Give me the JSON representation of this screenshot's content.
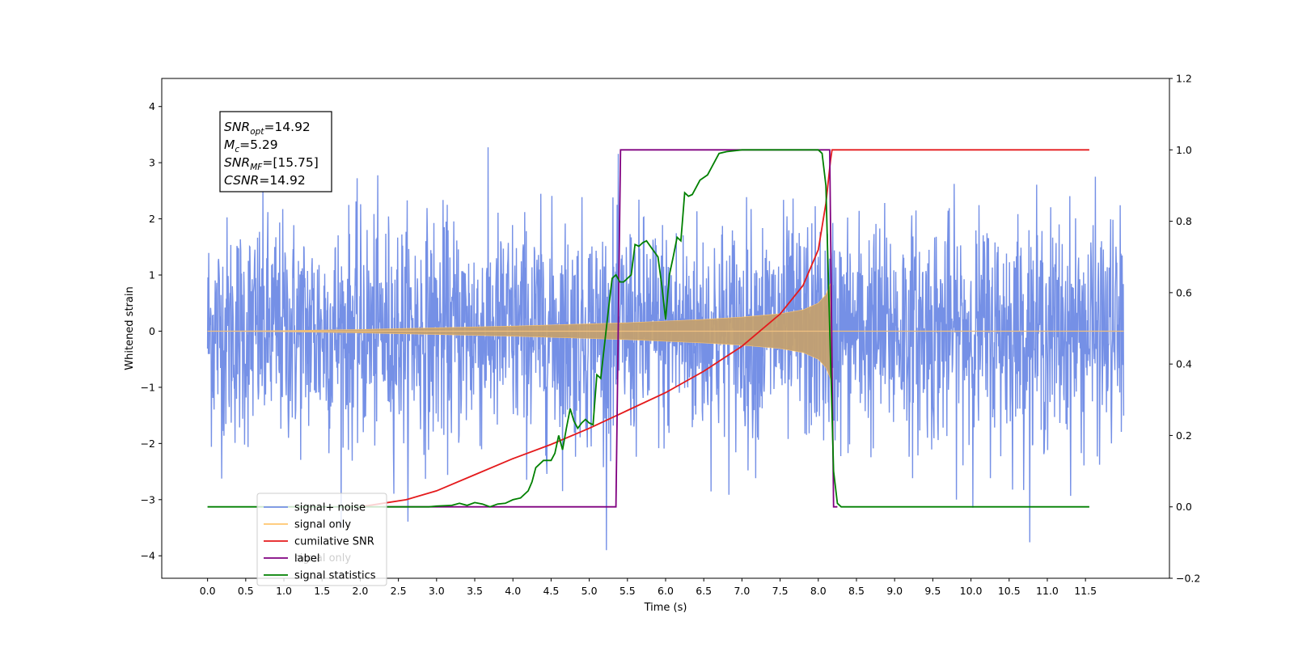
{
  "chart_data": {
    "type": "line",
    "xlabel": "Time (s)",
    "ylabel": "Whitened strain",
    "xlim": [
      -0.6,
      12.6
    ],
    "ylim": [
      -4.4,
      4.5
    ],
    "ylim_right": [
      -0.2,
      1.2
    ],
    "x_ticks": [
      "0.0",
      "0.5",
      "1.0",
      "1.5",
      "2.0",
      "2.5",
      "3.0",
      "3.5",
      "4.0",
      "4.5",
      "5.0",
      "5.5",
      "6.0",
      "6.5",
      "7.0",
      "7.5",
      "8.0",
      "8.5",
      "9.0",
      "9.5",
      "10.0",
      "10.5",
      "11.0",
      "11.5"
    ],
    "y_ticks_left": [
      "4",
      "3",
      "2",
      "1",
      "0",
      "−1",
      "−2",
      "−3",
      "−4"
    ],
    "y_ticks_right": [
      "1.2",
      "1.0",
      "0.8",
      "0.6",
      "0.4",
      "0.2",
      "0.0",
      "−0.2"
    ],
    "annotation": {
      "lines": [
        {
          "base": "SNR",
          "sub": "opt",
          "value": "=14.92"
        },
        {
          "base": "M",
          "sub": "c",
          "value": "=5.29"
        },
        {
          "base": "SNR",
          "sub": "MF",
          "value": "=[15.75]"
        },
        {
          "base": "CSNR",
          "sub": "",
          "value": "=14.92"
        }
      ]
    },
    "legend": {
      "placement": "lower-left",
      "entries": [
        {
          "label": "signal+ noise",
          "color": "#7590e6"
        },
        {
          "label": "signal only",
          "color": "#ffc66e"
        },
        {
          "label": "cumilative SNR",
          "color": "#e41a1c"
        },
        {
          "label": "label",
          "color": "#800080"
        },
        {
          "label": "signal statistics",
          "color": "#008000"
        }
      ],
      "ghost_label": "signal only"
    },
    "series": [
      {
        "name": "signal+ noise",
        "axis": "left",
        "color": "#7590e6",
        "kind": "noise",
        "x_range": [
          0.0,
          12.0
        ],
        "std": 1.0,
        "min": -3.9,
        "max": 4.1
      },
      {
        "name": "signal only",
        "axis": "left",
        "color": "#c3a070",
        "kind": "chirp_envelope",
        "points": [
          [
            0.0,
            0.0
          ],
          [
            1.0,
            0.01
          ],
          [
            2.0,
            0.03
          ],
          [
            3.0,
            0.06
          ],
          [
            4.0,
            0.09
          ],
          [
            5.0,
            0.13
          ],
          [
            5.5,
            0.15
          ],
          [
            6.0,
            0.18
          ],
          [
            6.5,
            0.21
          ],
          [
            7.0,
            0.25
          ],
          [
            7.5,
            0.31
          ],
          [
            7.8,
            0.38
          ],
          [
            8.0,
            0.5
          ],
          [
            8.1,
            0.65
          ],
          [
            8.16,
            0.85
          ],
          [
            8.18,
            0.0
          ],
          [
            12.0,
            0.0
          ]
        ]
      },
      {
        "name": "cumilative SNR",
        "axis": "right",
        "points": [
          [
            2.0,
            0.0
          ],
          [
            2.3,
            0.01
          ],
          [
            2.6,
            0.02
          ],
          [
            3.0,
            0.045
          ],
          [
            3.5,
            0.09
          ],
          [
            4.0,
            0.135
          ],
          [
            4.5,
            0.175
          ],
          [
            5.0,
            0.22
          ],
          [
            5.5,
            0.27
          ],
          [
            6.0,
            0.32
          ],
          [
            6.5,
            0.38
          ],
          [
            7.0,
            0.45
          ],
          [
            7.5,
            0.54
          ],
          [
            7.8,
            0.62
          ],
          [
            8.0,
            0.72
          ],
          [
            8.1,
            0.85
          ],
          [
            8.16,
            0.97
          ],
          [
            8.18,
            1.0
          ],
          [
            11.55,
            1.0
          ]
        ]
      },
      {
        "name": "label",
        "axis": "right",
        "points": [
          [
            2.3,
            0.0
          ],
          [
            5.35,
            0.0
          ],
          [
            5.41,
            1.0
          ],
          [
            8.15,
            1.0
          ],
          [
            8.2,
            0.0
          ],
          [
            8.25,
            0.0
          ]
        ]
      },
      {
        "name": "signal statistics",
        "axis": "right",
        "points": [
          [
            0.0,
            0.0
          ],
          [
            2.0,
            0.0
          ],
          [
            2.9,
            0.0
          ],
          [
            3.0,
            0.002
          ],
          [
            3.2,
            0.004
          ],
          [
            3.3,
            0.01
          ],
          [
            3.4,
            0.004
          ],
          [
            3.5,
            0.012
          ],
          [
            3.6,
            0.008
          ],
          [
            3.7,
            0.0
          ],
          [
            3.8,
            0.008
          ],
          [
            3.9,
            0.01
          ],
          [
            4.0,
            0.02
          ],
          [
            4.1,
            0.025
          ],
          [
            4.2,
            0.045
          ],
          [
            4.25,
            0.07
          ],
          [
            4.3,
            0.11
          ],
          [
            4.4,
            0.13
          ],
          [
            4.5,
            0.13
          ],
          [
            4.55,
            0.15
          ],
          [
            4.6,
            0.2
          ],
          [
            4.65,
            0.16
          ],
          [
            4.7,
            0.22
          ],
          [
            4.75,
            0.275
          ],
          [
            4.8,
            0.24
          ],
          [
            4.85,
            0.22
          ],
          [
            4.9,
            0.235
          ],
          [
            4.95,
            0.245
          ],
          [
            5.0,
            0.235
          ],
          [
            5.05,
            0.23
          ],
          [
            5.1,
            0.37
          ],
          [
            5.15,
            0.36
          ],
          [
            5.25,
            0.55
          ],
          [
            5.3,
            0.64
          ],
          [
            5.35,
            0.65
          ],
          [
            5.4,
            0.63
          ],
          [
            5.45,
            0.63
          ],
          [
            5.55,
            0.65
          ],
          [
            5.6,
            0.735
          ],
          [
            5.65,
            0.73
          ],
          [
            5.7,
            0.74
          ],
          [
            5.75,
            0.745
          ],
          [
            5.8,
            0.73
          ],
          [
            5.9,
            0.7
          ],
          [
            5.95,
            0.62
          ],
          [
            6.0,
            0.525
          ],
          [
            6.05,
            0.65
          ],
          [
            6.1,
            0.7
          ],
          [
            6.15,
            0.755
          ],
          [
            6.2,
            0.745
          ],
          [
            6.25,
            0.88
          ],
          [
            6.3,
            0.87
          ],
          [
            6.35,
            0.875
          ],
          [
            6.45,
            0.915
          ],
          [
            6.55,
            0.93
          ],
          [
            6.6,
            0.95
          ],
          [
            6.7,
            0.99
          ],
          [
            6.8,
            0.995
          ],
          [
            7.0,
            1.0
          ],
          [
            8.0,
            1.0
          ],
          [
            8.05,
            0.99
          ],
          [
            8.1,
            0.9
          ],
          [
            8.15,
            0.5
          ],
          [
            8.2,
            0.1
          ],
          [
            8.25,
            0.01
          ],
          [
            8.3,
            0.0
          ],
          [
            11.55,
            0.0
          ]
        ]
      }
    ]
  }
}
